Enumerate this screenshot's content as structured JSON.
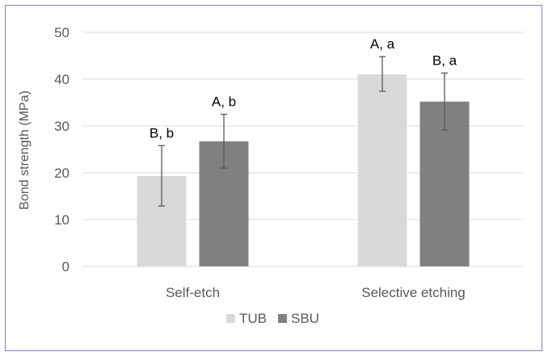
{
  "chart_data": {
    "type": "bar",
    "title": "",
    "xlabel": "",
    "ylabel": "Bond strength (MPa)",
    "ylim": [
      0,
      50
    ],
    "yticks": [
      0,
      10,
      20,
      30,
      40,
      50
    ],
    "categories": [
      "Self-etch",
      "Selective etching"
    ],
    "series": [
      {
        "name": "TUB",
        "color": "#d9d9d9",
        "values": [
          19.3,
          41.0
        ],
        "error_low": [
          12.9,
          37.4
        ],
        "error_high": [
          25.8,
          44.8
        ],
        "labels": [
          "B, b",
          "A, a"
        ]
      },
      {
        "name": "SBU",
        "color": "#808080",
        "values": [
          26.7,
          35.2
        ],
        "error_low": [
          21.0,
          29.1
        ],
        "error_high": [
          32.5,
          41.3
        ],
        "labels": [
          "A, b",
          "B, a"
        ]
      }
    ],
    "legend": "bottom-center",
    "grid": true,
    "colors": {
      "grid": "#d9d9d9",
      "axis_text": "#595959",
      "label_text": "#000000",
      "frame": "#7f7fbf",
      "error_bar": "#595959"
    }
  }
}
